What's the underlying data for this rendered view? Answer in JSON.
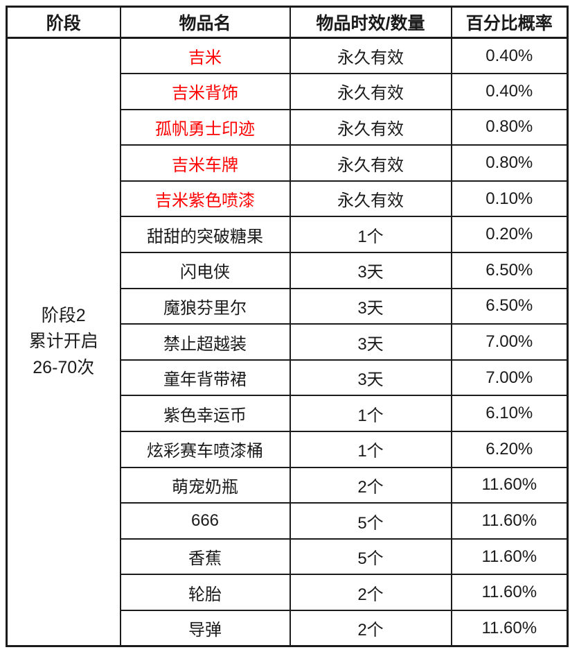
{
  "colors": {
    "item_highlight_red": "#ff0000",
    "text": "#1a1a1a",
    "border": "#1b1b1b",
    "background": "#ffffff"
  },
  "table": {
    "headers": {
      "stage": "阶段",
      "item_name": "物品名",
      "duration_quantity": "物品时效/数量",
      "probability": "百分比概率"
    },
    "stage": {
      "lines": [
        "阶段2",
        "累计开启",
        "26-70次"
      ]
    },
    "rows": [
      {
        "name": "吉米",
        "duration": "永久有效",
        "probability": "0.40%",
        "highlighted": true
      },
      {
        "name": "吉米背饰",
        "duration": "永久有效",
        "probability": "0.40%",
        "highlighted": true
      },
      {
        "name": "孤帆勇士印迹",
        "duration": "永久有效",
        "probability": "0.80%",
        "highlighted": true
      },
      {
        "name": "吉米车牌",
        "duration": "永久有效",
        "probability": "0.80%",
        "highlighted": true
      },
      {
        "name": "吉米紫色喷漆",
        "duration": "永久有效",
        "probability": "0.10%",
        "highlighted": true
      },
      {
        "name": "甜甜的突破糖果",
        "duration": "1个",
        "probability": "0.20%",
        "highlighted": false
      },
      {
        "name": "闪电侠",
        "duration": "3天",
        "probability": "6.50%",
        "highlighted": false
      },
      {
        "name": "魔狼芬里尔",
        "duration": "3天",
        "probability": "6.50%",
        "highlighted": false
      },
      {
        "name": "禁止超越装",
        "duration": "3天",
        "probability": "7.00%",
        "highlighted": false
      },
      {
        "name": "童年背带裙",
        "duration": "3天",
        "probability": "7.00%",
        "highlighted": false
      },
      {
        "name": "紫色幸运币",
        "duration": "1个",
        "probability": "6.10%",
        "highlighted": false
      },
      {
        "name": "炫彩赛车喷漆桶",
        "duration": "1个",
        "probability": "6.20%",
        "highlighted": false
      },
      {
        "name": "萌宠奶瓶",
        "duration": "2个",
        "probability": "11.60%",
        "highlighted": false
      },
      {
        "name": "666",
        "duration": "5个",
        "probability": "11.60%",
        "highlighted": false
      },
      {
        "name": "香蕉",
        "duration": "5个",
        "probability": "11.60%",
        "highlighted": false
      },
      {
        "name": "轮胎",
        "duration": "2个",
        "probability": "11.60%",
        "highlighted": false
      },
      {
        "name": "导弹",
        "duration": "2个",
        "probability": "11.60%",
        "highlighted": false
      }
    ]
  }
}
